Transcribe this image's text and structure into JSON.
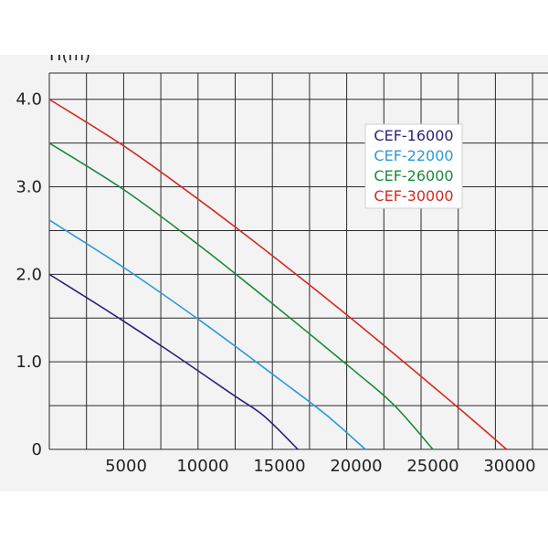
{
  "chart_data": {
    "type": "line",
    "title": "",
    "ylabel": "H(m)",
    "xlabel": "",
    "xlim": [
      0,
      32500
    ],
    "ylim": [
      0,
      4.3
    ],
    "grid": true,
    "legend_position": "top-right",
    "x_ticks": [
      {
        "value": 5000,
        "label": "5000"
      },
      {
        "value": 10000,
        "label": "10000"
      },
      {
        "value": 15000,
        "label": "15000"
      },
      {
        "value": 20000,
        "label": "20000"
      },
      {
        "value": 25000,
        "label": "25000"
      },
      {
        "value": 30000,
        "label": "30000"
      }
    ],
    "y_ticks": [
      {
        "value": 0,
        "label": "0"
      },
      {
        "value": 1,
        "label": "1.0"
      },
      {
        "value": 2,
        "label": "2.0"
      },
      {
        "value": 3,
        "label": "3.0"
      },
      {
        "value": 4,
        "label": "4.0"
      }
    ],
    "series": [
      {
        "name": "CEF-16000",
        "color": "#2b2378",
        "points": [
          [
            0,
            2.0
          ],
          [
            4000,
            1.56
          ],
          [
            8000,
            1.1
          ],
          [
            12000,
            0.62
          ],
          [
            14000,
            0.38
          ],
          [
            16200,
            0.0
          ]
        ]
      },
      {
        "name": "CEF-22000",
        "color": "#2a9bd8",
        "points": [
          [
            0,
            2.62
          ],
          [
            5000,
            2.06
          ],
          [
            10000,
            1.45
          ],
          [
            15000,
            0.8
          ],
          [
            18000,
            0.4
          ],
          [
            20600,
            0.0
          ]
        ]
      },
      {
        "name": "CEF-26000",
        "color": "#1a8a3c",
        "points": [
          [
            0,
            3.5
          ],
          [
            5000,
            2.95
          ],
          [
            10000,
            2.3
          ],
          [
            15000,
            1.6
          ],
          [
            20000,
            0.88
          ],
          [
            22500,
            0.5
          ],
          [
            25000,
            0.0
          ]
        ]
      },
      {
        "name": "CEF-30000",
        "color": "#d42a20",
        "points": [
          [
            0,
            4.0
          ],
          [
            5000,
            3.45
          ],
          [
            10000,
            2.82
          ],
          [
            15000,
            2.15
          ],
          [
            20000,
            1.45
          ],
          [
            25000,
            0.72
          ],
          [
            27500,
            0.35
          ],
          [
            29800,
            0.0
          ]
        ]
      }
    ]
  }
}
